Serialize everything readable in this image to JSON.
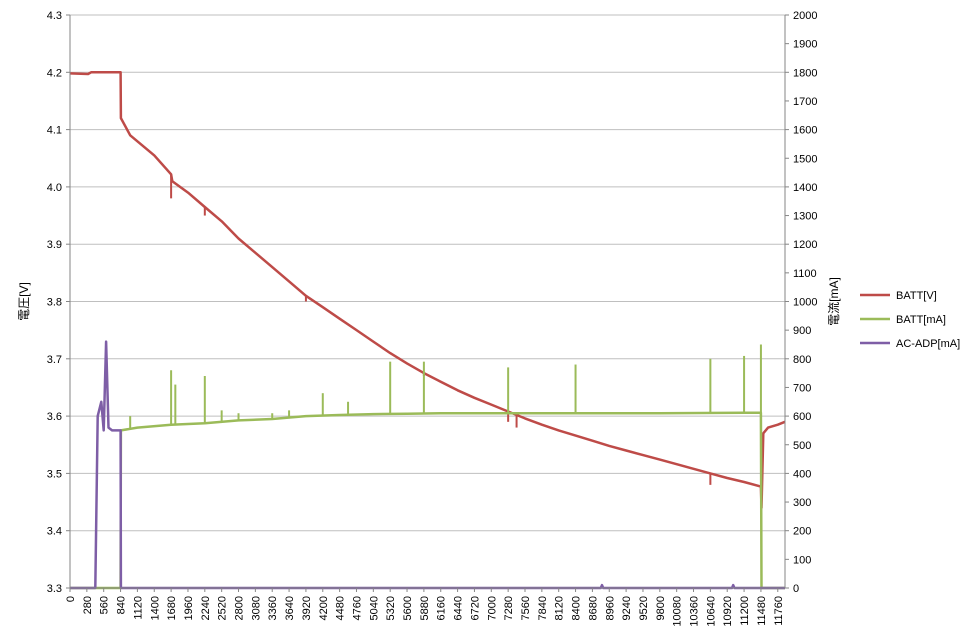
{
  "chart_data": {
    "type": "line",
    "x_axis": {
      "min": 0,
      "max": 11760,
      "ticks": [
        0,
        280,
        560,
        840,
        1120,
        1400,
        1680,
        1960,
        2240,
        2520,
        2800,
        3080,
        3360,
        3640,
        3920,
        4200,
        4480,
        4760,
        5040,
        5320,
        5600,
        5880,
        6160,
        6440,
        6720,
        7000,
        7280,
        7560,
        7840,
        8120,
        8400,
        8680,
        8960,
        9240,
        9520,
        9800,
        10080,
        10360,
        10640,
        10920,
        11200,
        11480,
        11760
      ]
    },
    "y_left": {
      "label": "電圧[V]",
      "min": 3.3,
      "max": 4.3,
      "ticks": [
        "3.3",
        "3.4",
        "3.5",
        "3.6",
        "3.7",
        "3.8",
        "3.9",
        "4.0",
        "4.1",
        "4.2",
        "4.3"
      ]
    },
    "y_right": {
      "label": "電流[mA]",
      "min": 0,
      "max": 2000,
      "ticks": [
        "0",
        "100",
        "200",
        "300",
        "400",
        "500",
        "600",
        "700",
        "800",
        "900",
        "1000",
        "1100",
        "1200",
        "1300",
        "1400",
        "1500",
        "1600",
        "1700",
        "1800",
        "1900",
        "2000"
      ]
    },
    "grid": true,
    "legend_position": "right",
    "series": [
      {
        "name": "BATT[V]",
        "axis": "left",
        "color": "#be4b48",
        "points": [
          [
            0,
            4.198
          ],
          [
            300,
            4.197
          ],
          [
            350,
            4.2
          ],
          [
            600,
            4.2
          ],
          [
            840,
            4.2
          ],
          [
            845,
            4.12
          ],
          [
            1000,
            4.09
          ],
          [
            1400,
            4.055
          ],
          [
            1680,
            4.022
          ],
          [
            1700,
            4.01
          ],
          [
            1960,
            3.99
          ],
          [
            2240,
            3.965
          ],
          [
            2520,
            3.94
          ],
          [
            2800,
            3.91
          ],
          [
            3080,
            3.885
          ],
          [
            3360,
            3.86
          ],
          [
            3640,
            3.835
          ],
          [
            3920,
            3.81
          ],
          [
            4200,
            3.79
          ],
          [
            4480,
            3.77
          ],
          [
            4760,
            3.75
          ],
          [
            5040,
            3.73
          ],
          [
            5320,
            3.71
          ],
          [
            5600,
            3.692
          ],
          [
            5880,
            3.675
          ],
          [
            6160,
            3.66
          ],
          [
            6440,
            3.645
          ],
          [
            6720,
            3.632
          ],
          [
            7000,
            3.62
          ],
          [
            7280,
            3.608
          ],
          [
            7560,
            3.596
          ],
          [
            7840,
            3.585
          ],
          [
            8120,
            3.575
          ],
          [
            8400,
            3.566
          ],
          [
            8680,
            3.557
          ],
          [
            8960,
            3.548
          ],
          [
            9240,
            3.54
          ],
          [
            9520,
            3.532
          ],
          [
            9800,
            3.524
          ],
          [
            10080,
            3.516
          ],
          [
            10360,
            3.508
          ],
          [
            10640,
            3.5
          ],
          [
            10920,
            3.492
          ],
          [
            11200,
            3.485
          ],
          [
            11480,
            3.477
          ],
          [
            11490,
            3.44
          ],
          [
            11520,
            3.57
          ],
          [
            11600,
            3.58
          ],
          [
            11760,
            3.585
          ],
          [
            11880,
            3.59
          ]
        ],
        "spikes": [
          [
            1680,
            3.98
          ],
          [
            2240,
            3.95
          ],
          [
            3920,
            3.8
          ],
          [
            5320,
            3.71
          ],
          [
            5880,
            3.67
          ],
          [
            7280,
            3.59
          ],
          [
            7420,
            3.58
          ],
          [
            10640,
            3.48
          ]
        ]
      },
      {
        "name": "BATT[mA]",
        "axis": "right",
        "color": "#9bbb59",
        "points": [
          [
            0,
            0
          ],
          [
            840,
            0
          ],
          [
            845,
            550
          ],
          [
            1120,
            560
          ],
          [
            1680,
            570
          ],
          [
            2240,
            575
          ],
          [
            2800,
            585
          ],
          [
            3360,
            590
          ],
          [
            3920,
            600
          ],
          [
            4480,
            604
          ],
          [
            5040,
            607
          ],
          [
            5600,
            608
          ],
          [
            6160,
            610
          ],
          [
            7000,
            610
          ],
          [
            8400,
            610
          ],
          [
            9800,
            610
          ],
          [
            11200,
            612
          ],
          [
            11480,
            612
          ],
          [
            11490,
            0
          ],
          [
            11520,
            0
          ],
          [
            11880,
            0
          ]
        ],
        "spikes": [
          [
            1000,
            600
          ],
          [
            1680,
            760
          ],
          [
            1750,
            710
          ],
          [
            2240,
            740
          ],
          [
            2520,
            620
          ],
          [
            2800,
            610
          ],
          [
            3360,
            610
          ],
          [
            3640,
            620
          ],
          [
            4200,
            680
          ],
          [
            4620,
            650
          ],
          [
            5320,
            790
          ],
          [
            5880,
            790
          ],
          [
            7280,
            770
          ],
          [
            8400,
            780
          ],
          [
            10640,
            800
          ],
          [
            11200,
            810
          ],
          [
            11480,
            850
          ]
        ]
      },
      {
        "name": "AC-ADP[mA]",
        "axis": "right",
        "color": "#7e5ea6",
        "points": [
          [
            0,
            0
          ],
          [
            420,
            0
          ],
          [
            460,
            600
          ],
          [
            520,
            650
          ],
          [
            560,
            550
          ],
          [
            600,
            860
          ],
          [
            640,
            560
          ],
          [
            700,
            550
          ],
          [
            840,
            550
          ],
          [
            845,
            0
          ],
          [
            8820,
            0
          ],
          [
            8840,
            10
          ],
          [
            8860,
            0
          ],
          [
            11000,
            0
          ],
          [
            11020,
            10
          ],
          [
            11040,
            0
          ],
          [
            11880,
            0
          ]
        ],
        "spikes": []
      }
    ]
  }
}
